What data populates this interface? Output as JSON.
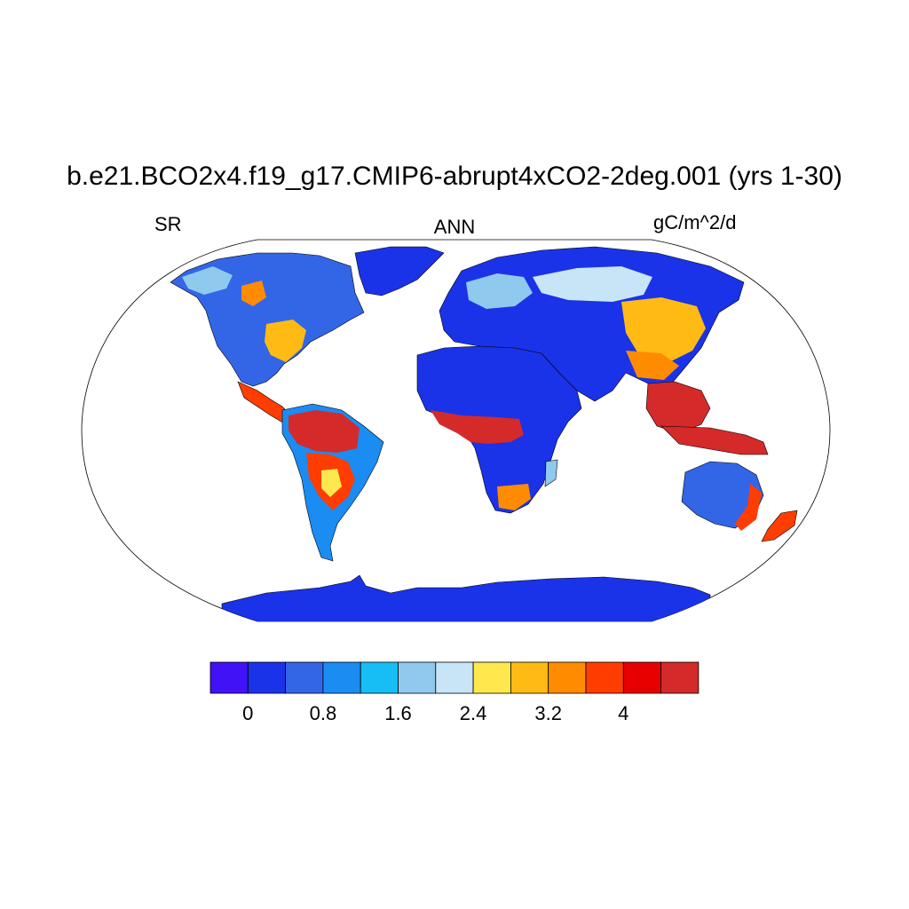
{
  "header": {
    "title": "b.e21.BCO2x4.f19_g17.CMIP6-abrupt4xCO2-2deg.001 (yrs 1-30)",
    "left": "SR",
    "center": "ANN",
    "right": "gC/m^2/d"
  },
  "map": {
    "projection": "Robinson (global)",
    "variable": "SR",
    "season": "ANN",
    "units": "gC/m^2/d",
    "regions": [
      {
        "name": "Greenland",
        "level": 0.2
      },
      {
        "name": "Canada and Alaska",
        "level": 1.0
      },
      {
        "name": "Eastern United States",
        "level": 2.6
      },
      {
        "name": "Central America",
        "level": 3.8
      },
      {
        "name": "Amazon",
        "level": 4.6
      },
      {
        "name": "Southern South America",
        "level": 2.4
      },
      {
        "name": "Sahara",
        "level": 0.2
      },
      {
        "name": "Central Africa",
        "level": 4.6
      },
      {
        "name": "Southern Africa",
        "level": 1.2
      },
      {
        "name": "Europe",
        "level": 1.4
      },
      {
        "name": "Siberia",
        "level": 1.0
      },
      {
        "name": "East Asia",
        "level": 2.8
      },
      {
        "name": "Southeast Asia",
        "level": 4.6
      },
      {
        "name": "Australia",
        "level": 0.6
      },
      {
        "name": "New Zealand",
        "level": 4.2
      },
      {
        "name": "Antarctica",
        "level": 0.0
      }
    ]
  },
  "colorbar": {
    "colors": [
      "#4012f5",
      "#1a33e8",
      "#3366e6",
      "#1a8cf2",
      "#17bdf5",
      "#8fc9ee",
      "#c8e5f7",
      "#ffe84d",
      "#ffbb14",
      "#ff8c00",
      "#ff3d00",
      "#e60000",
      "#d42a2a"
    ],
    "ticks": [
      "0",
      "0.8",
      "1.6",
      "2.4",
      "3.2",
      "4"
    ]
  }
}
